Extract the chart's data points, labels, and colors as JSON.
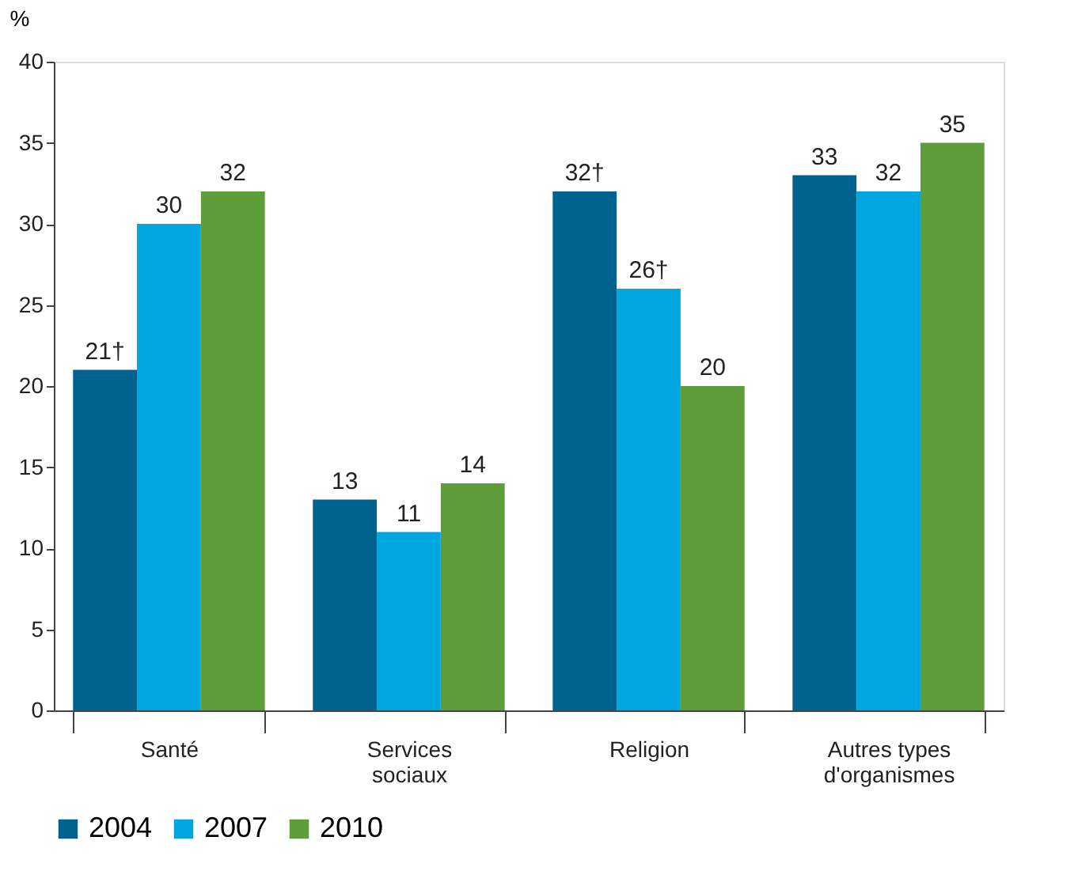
{
  "chart_data": {
    "type": "bar",
    "ylabel": "%",
    "categories": [
      "Santé",
      "Services sociaux",
      "Religion",
      "Autres types d'organismes"
    ],
    "series": [
      {
        "name": "2004",
        "color": "#00628f",
        "values": [
          21,
          13,
          32,
          33
        ],
        "value_labels": [
          "21†",
          "13",
          "32†",
          "33"
        ]
      },
      {
        "name": "2007",
        "color": "#00a6e0",
        "values": [
          30,
          11,
          26,
          32
        ],
        "value_labels": [
          "30",
          "11",
          "26†",
          "32"
        ]
      },
      {
        "name": "2010",
        "color": "#5e9e3a",
        "values": [
          32,
          14,
          20,
          35
        ],
        "value_labels": [
          "32",
          "14",
          "20",
          "35"
        ]
      }
    ],
    "ylim": [
      0,
      40
    ],
    "yticks": [
      0,
      5,
      10,
      15,
      20,
      25,
      30,
      35,
      40
    ],
    "grid": false,
    "legend": "bottom"
  }
}
